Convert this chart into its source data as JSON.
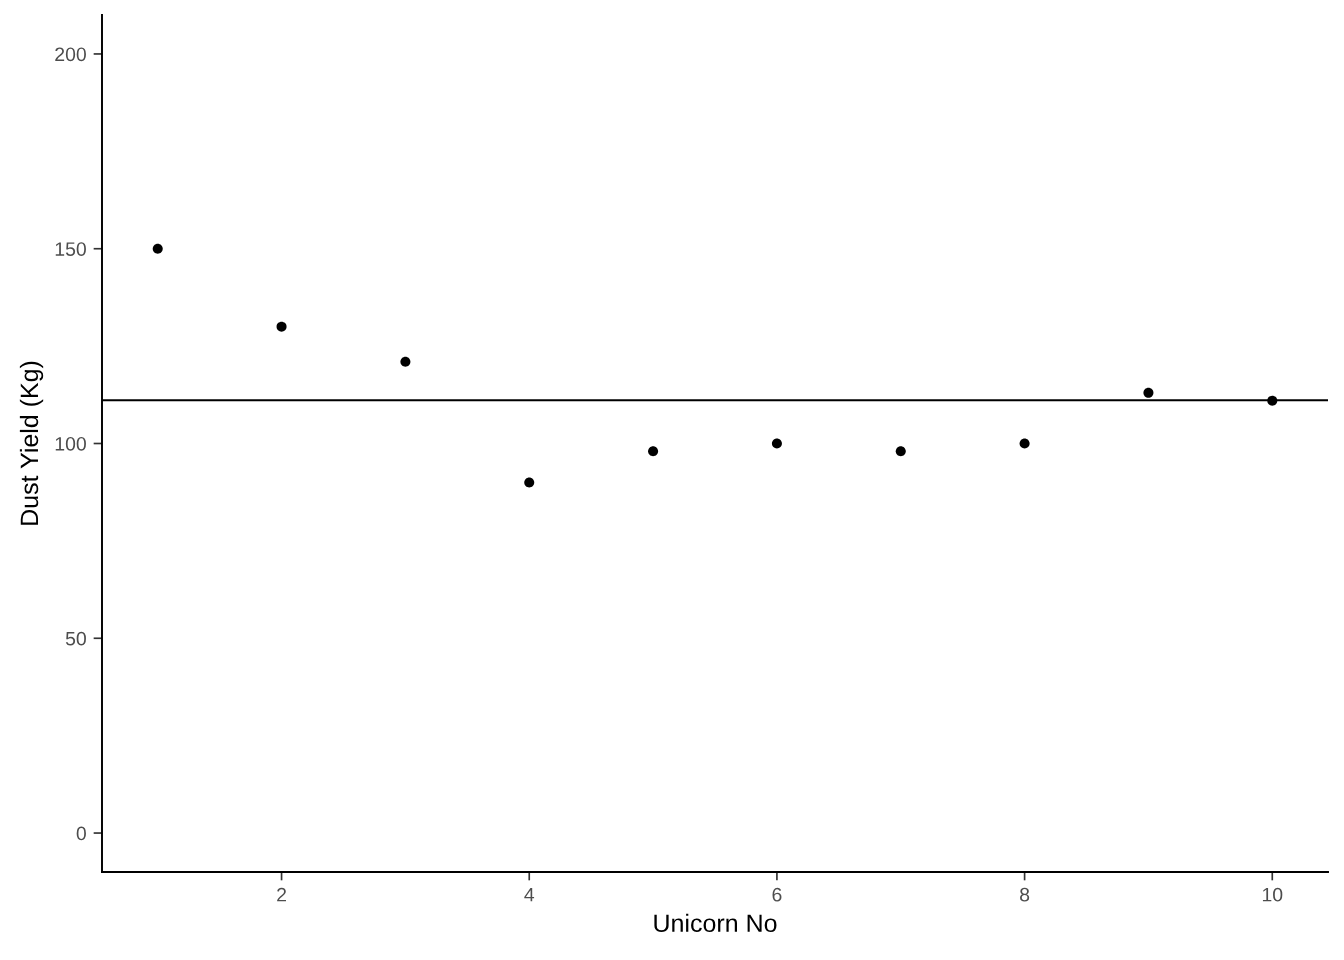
{
  "chart_data": {
    "type": "scatter",
    "xlabel": "Unicorn No",
    "ylabel": "Dust Yield (Kg)",
    "x": [
      1,
      2,
      3,
      4,
      5,
      6,
      7,
      8,
      9,
      10
    ],
    "series": [
      {
        "color": "#000000",
        "values": [
          150,
          130,
          121,
          90,
          98,
          100,
          98,
          100,
          113,
          111
        ]
      }
    ],
    "marker": "circle",
    "xlim": [
      0.55,
      10.45
    ],
    "xticks": [
      2,
      4,
      6,
      8,
      10
    ],
    "ylim": [
      -10,
      210
    ],
    "yticks": [
      0,
      50,
      100,
      150,
      200
    ],
    "ref_lines": [
      {
        "axis": "y",
        "value": 111.1,
        "color": "#000000",
        "line_style": "solid"
      }
    ]
  }
}
